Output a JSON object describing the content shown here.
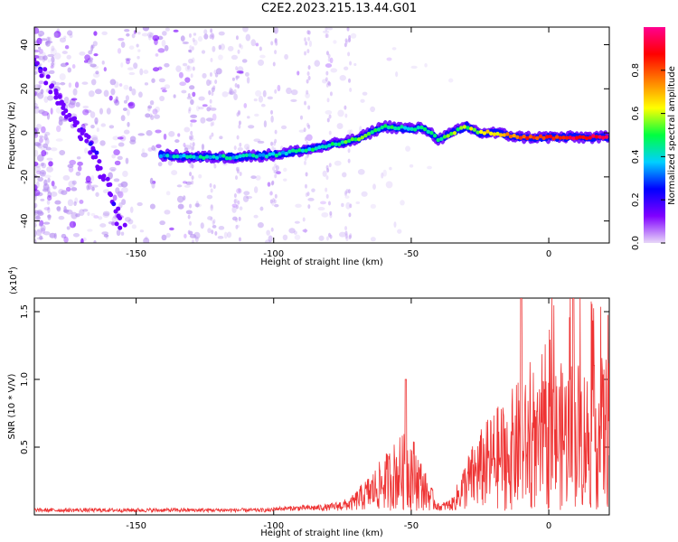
{
  "title": "C2E2.2023.215.13.44.G01",
  "colors": {
    "snr_line": "#ee3333",
    "axis": "#000000"
  },
  "chart_data": [
    {
      "type": "heatmap",
      "xlabel": "Height of straight line (km)",
      "ylabel": "Frequency (Hz)",
      "xlim": [
        -187,
        22
      ],
      "ylim": [
        -50,
        48
      ],
      "xticks": [
        -150,
        -100,
        -50,
        0
      ],
      "yticks": [
        -40,
        -20,
        0,
        20,
        40
      ],
      "colorbar": {
        "label": "Normalized spectral amplitude",
        "range": [
          0,
          1
        ],
        "ticks": [
          "0.0",
          "0.2",
          "0.4",
          "0.6",
          "0.8"
        ],
        "colormap": [
          "#e8d8f8",
          "#8000ff",
          "#0000ff",
          "#00d0ff",
          "#00ff40",
          "#ffff00",
          "#ff8000",
          "#ff0000",
          "#ff0090"
        ]
      },
      "ridge": {
        "description_points_x": [
          -141,
          -130,
          -115,
          -100,
          -85,
          -70,
          -60,
          -52,
          -45,
          -40,
          -35,
          -30,
          -25,
          -20,
          -10,
          0,
          10,
          22
        ],
        "description_points_y": [
          -10,
          -11,
          -11,
          -10,
          -7,
          -3,
          3,
          2,
          2,
          -3,
          0,
          3,
          0,
          0,
          -2,
          -2,
          -2,
          -2
        ],
        "intensity": [
          0.35,
          0.4,
          0.4,
          0.4,
          0.45,
          0.5,
          0.5,
          0.45,
          0.45,
          0.5,
          0.55,
          0.55,
          0.6,
          0.65,
          0.8,
          0.85,
          0.9,
          0.9
        ]
      },
      "dispersive_track": {
        "x": [
          -187,
          -180,
          -175,
          -170,
          -165,
          -160,
          -155
        ],
        "y": [
          34,
          20,
          10,
          0,
          -10,
          -25,
          -45
        ]
      }
    },
    {
      "type": "line",
      "xlabel": "Height of straight line (km)",
      "ylabel": "SNR (10 * V/V)",
      "yscale_label": "(x10",
      "yscale_exp": "4",
      "yscale_close": ")",
      "xlim": [
        -187,
        22
      ],
      "ylim": [
        0,
        1.6
      ],
      "xticks": [
        -150,
        -100,
        -50,
        0
      ],
      "yticks": [
        0.5,
        1.0,
        1.5
      ],
      "ytick_labels": [
        "0.5",
        "1.0",
        "1.5"
      ],
      "series": [
        {
          "envelope_x": [
            -187,
            -100,
            -80,
            -72,
            -62,
            -55,
            -50,
            -45,
            -40,
            -35,
            -30,
            -25,
            -20,
            -15,
            -10,
            -5,
            0,
            5,
            10,
            15,
            22
          ],
          "envelope_y": [
            0.03,
            0.03,
            0.05,
            0.1,
            0.35,
            0.55,
            0.6,
            0.3,
            0.05,
            0.1,
            0.4,
            0.6,
            0.75,
            0.85,
            1.0,
            0.85,
            1.05,
            1.1,
            1.15,
            1.05,
            1.2
          ]
        }
      ]
    }
  ]
}
